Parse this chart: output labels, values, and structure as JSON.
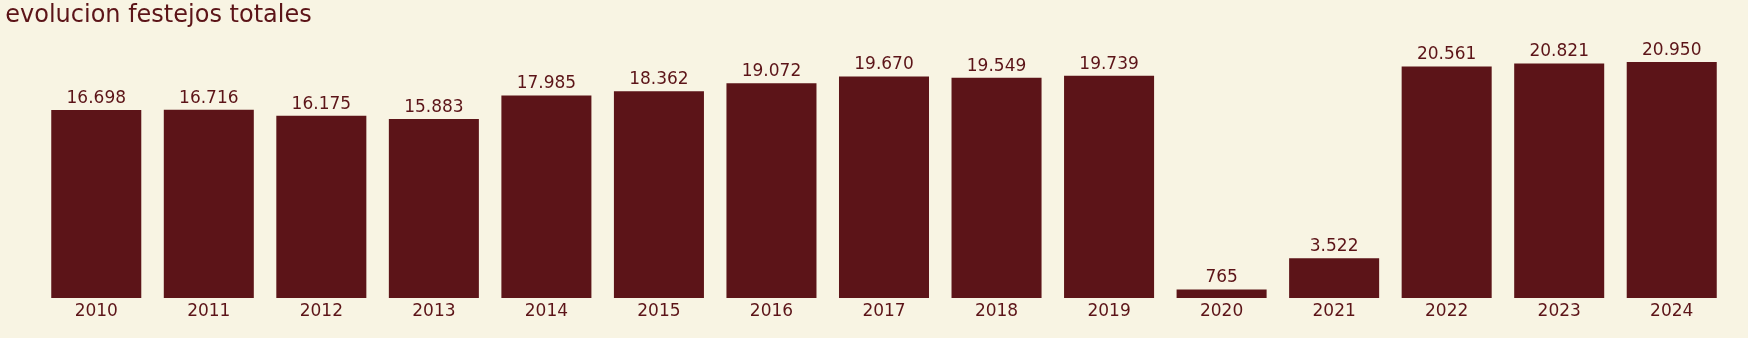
{
  "chart_data": {
    "type": "bar",
    "title": "evolucion festejos totales",
    "categories": [
      "2010",
      "2011",
      "2012",
      "2013",
      "2014",
      "2015",
      "2016",
      "2017",
      "2018",
      "2019",
      "2020",
      "2021",
      "2022",
      "2023",
      "2024"
    ],
    "values": [
      16698,
      16716,
      16175,
      15883,
      17985,
      18362,
      19072,
      19670,
      19549,
      19739,
      765,
      3522,
      20561,
      20821,
      20950
    ],
    "value_labels": [
      "16.698",
      "16.716",
      "16.175",
      "15.883",
      "17.985",
      "18.362",
      "19.072",
      "19.670",
      "19.549",
      "19.739",
      "765",
      "3.522",
      "20.561",
      "20.821",
      "20.950"
    ],
    "color": "#5c1418",
    "grid": false,
    "legend": false
  }
}
